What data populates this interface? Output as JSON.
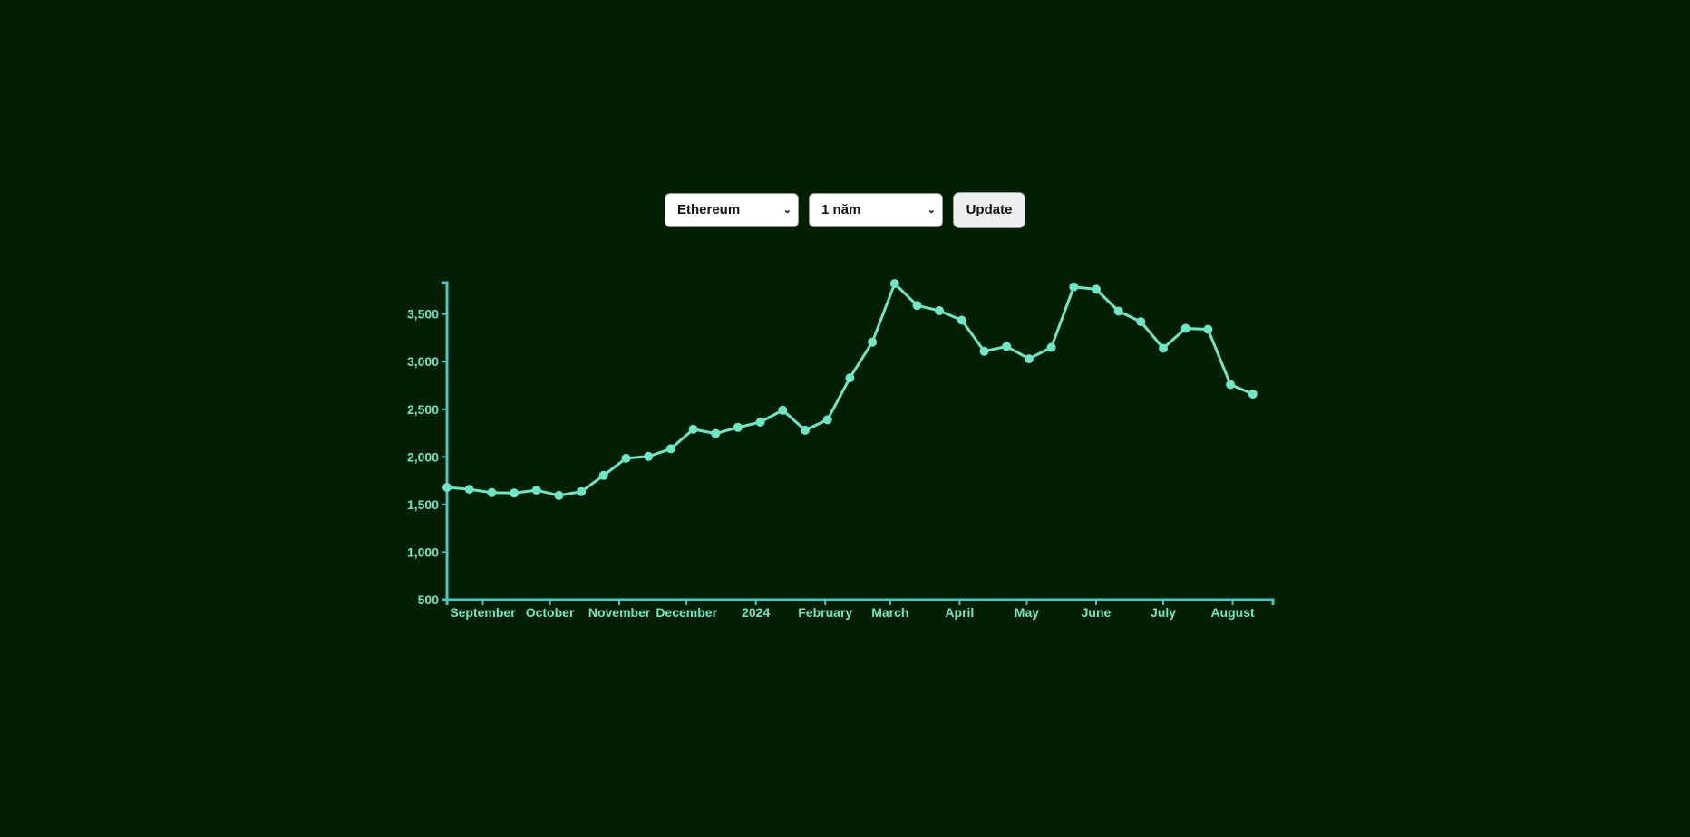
{
  "controls": {
    "coin_select": "Ethereum",
    "range_select": "1 năm",
    "update_label": "Update"
  },
  "icons": {
    "dropdown": "chevron-down-icon"
  },
  "colors": {
    "background": "#021f02",
    "line": "#6ee7c8",
    "axis": "#46c9c9"
  },
  "chart_data": {
    "type": "line",
    "title": "",
    "xlabel": "",
    "ylabel": "",
    "x_axis": "date",
    "x_ticks": [
      "September",
      "October",
      "November",
      "December",
      "2024",
      "February",
      "March",
      "April",
      "May",
      "June",
      "July",
      "August"
    ],
    "x_tick_dates": [
      "2023-09-01",
      "2023-10-01",
      "2023-11-01",
      "2023-12-01",
      "2024-01-01",
      "2024-02-01",
      "2024-03-01",
      "2024-04-01",
      "2024-05-01",
      "2024-06-01",
      "2024-07-01",
      "2024-08-01"
    ],
    "x_range": [
      "2023-08-16",
      "2024-08-19"
    ],
    "y_ticks": [
      "500",
      "1,000",
      "1,500",
      "2,000",
      "2,500",
      "3,000",
      "3,500"
    ],
    "y_tick_values": [
      500,
      1000,
      1500,
      2000,
      2500,
      3000,
      3500
    ],
    "ylim": [
      500,
      3830
    ],
    "grid": false,
    "legend": "none",
    "points": [
      {
        "x": "2023-08-16",
        "y": 1680
      },
      {
        "x": "2023-08-26",
        "y": 1660
      },
      {
        "x": "2023-09-05",
        "y": 1625
      },
      {
        "x": "2023-09-15",
        "y": 1620
      },
      {
        "x": "2023-09-25",
        "y": 1650
      },
      {
        "x": "2023-10-05",
        "y": 1595
      },
      {
        "x": "2023-10-15",
        "y": 1635
      },
      {
        "x": "2023-10-25",
        "y": 1805
      },
      {
        "x": "2023-11-04",
        "y": 1985
      },
      {
        "x": "2023-11-14",
        "y": 2005
      },
      {
        "x": "2023-11-24",
        "y": 2085
      },
      {
        "x": "2023-12-04",
        "y": 2290
      },
      {
        "x": "2023-12-14",
        "y": 2245
      },
      {
        "x": "2023-12-24",
        "y": 2310
      },
      {
        "x": "2024-01-03",
        "y": 2365
      },
      {
        "x": "2024-01-13",
        "y": 2490
      },
      {
        "x": "2024-01-23",
        "y": 2280
      },
      {
        "x": "2024-02-02",
        "y": 2390
      },
      {
        "x": "2024-02-12",
        "y": 2830
      },
      {
        "x": "2024-02-22",
        "y": 3205
      },
      {
        "x": "2024-03-03",
        "y": 3820
      },
      {
        "x": "2024-03-13",
        "y": 3590
      },
      {
        "x": "2024-03-23",
        "y": 3535
      },
      {
        "x": "2024-04-02",
        "y": 3435
      },
      {
        "x": "2024-04-12",
        "y": 3110
      },
      {
        "x": "2024-04-22",
        "y": 3160
      },
      {
        "x": "2024-05-02",
        "y": 3030
      },
      {
        "x": "2024-05-12",
        "y": 3150
      },
      {
        "x": "2024-05-22",
        "y": 3785
      },
      {
        "x": "2024-06-01",
        "y": 3760
      },
      {
        "x": "2024-06-11",
        "y": 3530
      },
      {
        "x": "2024-06-21",
        "y": 3420
      },
      {
        "x": "2024-07-01",
        "y": 3140
      },
      {
        "x": "2024-07-11",
        "y": 3350
      },
      {
        "x": "2024-07-21",
        "y": 3340
      },
      {
        "x": "2024-07-31",
        "y": 2760
      },
      {
        "x": "2024-08-10",
        "y": 2660
      }
    ]
  }
}
